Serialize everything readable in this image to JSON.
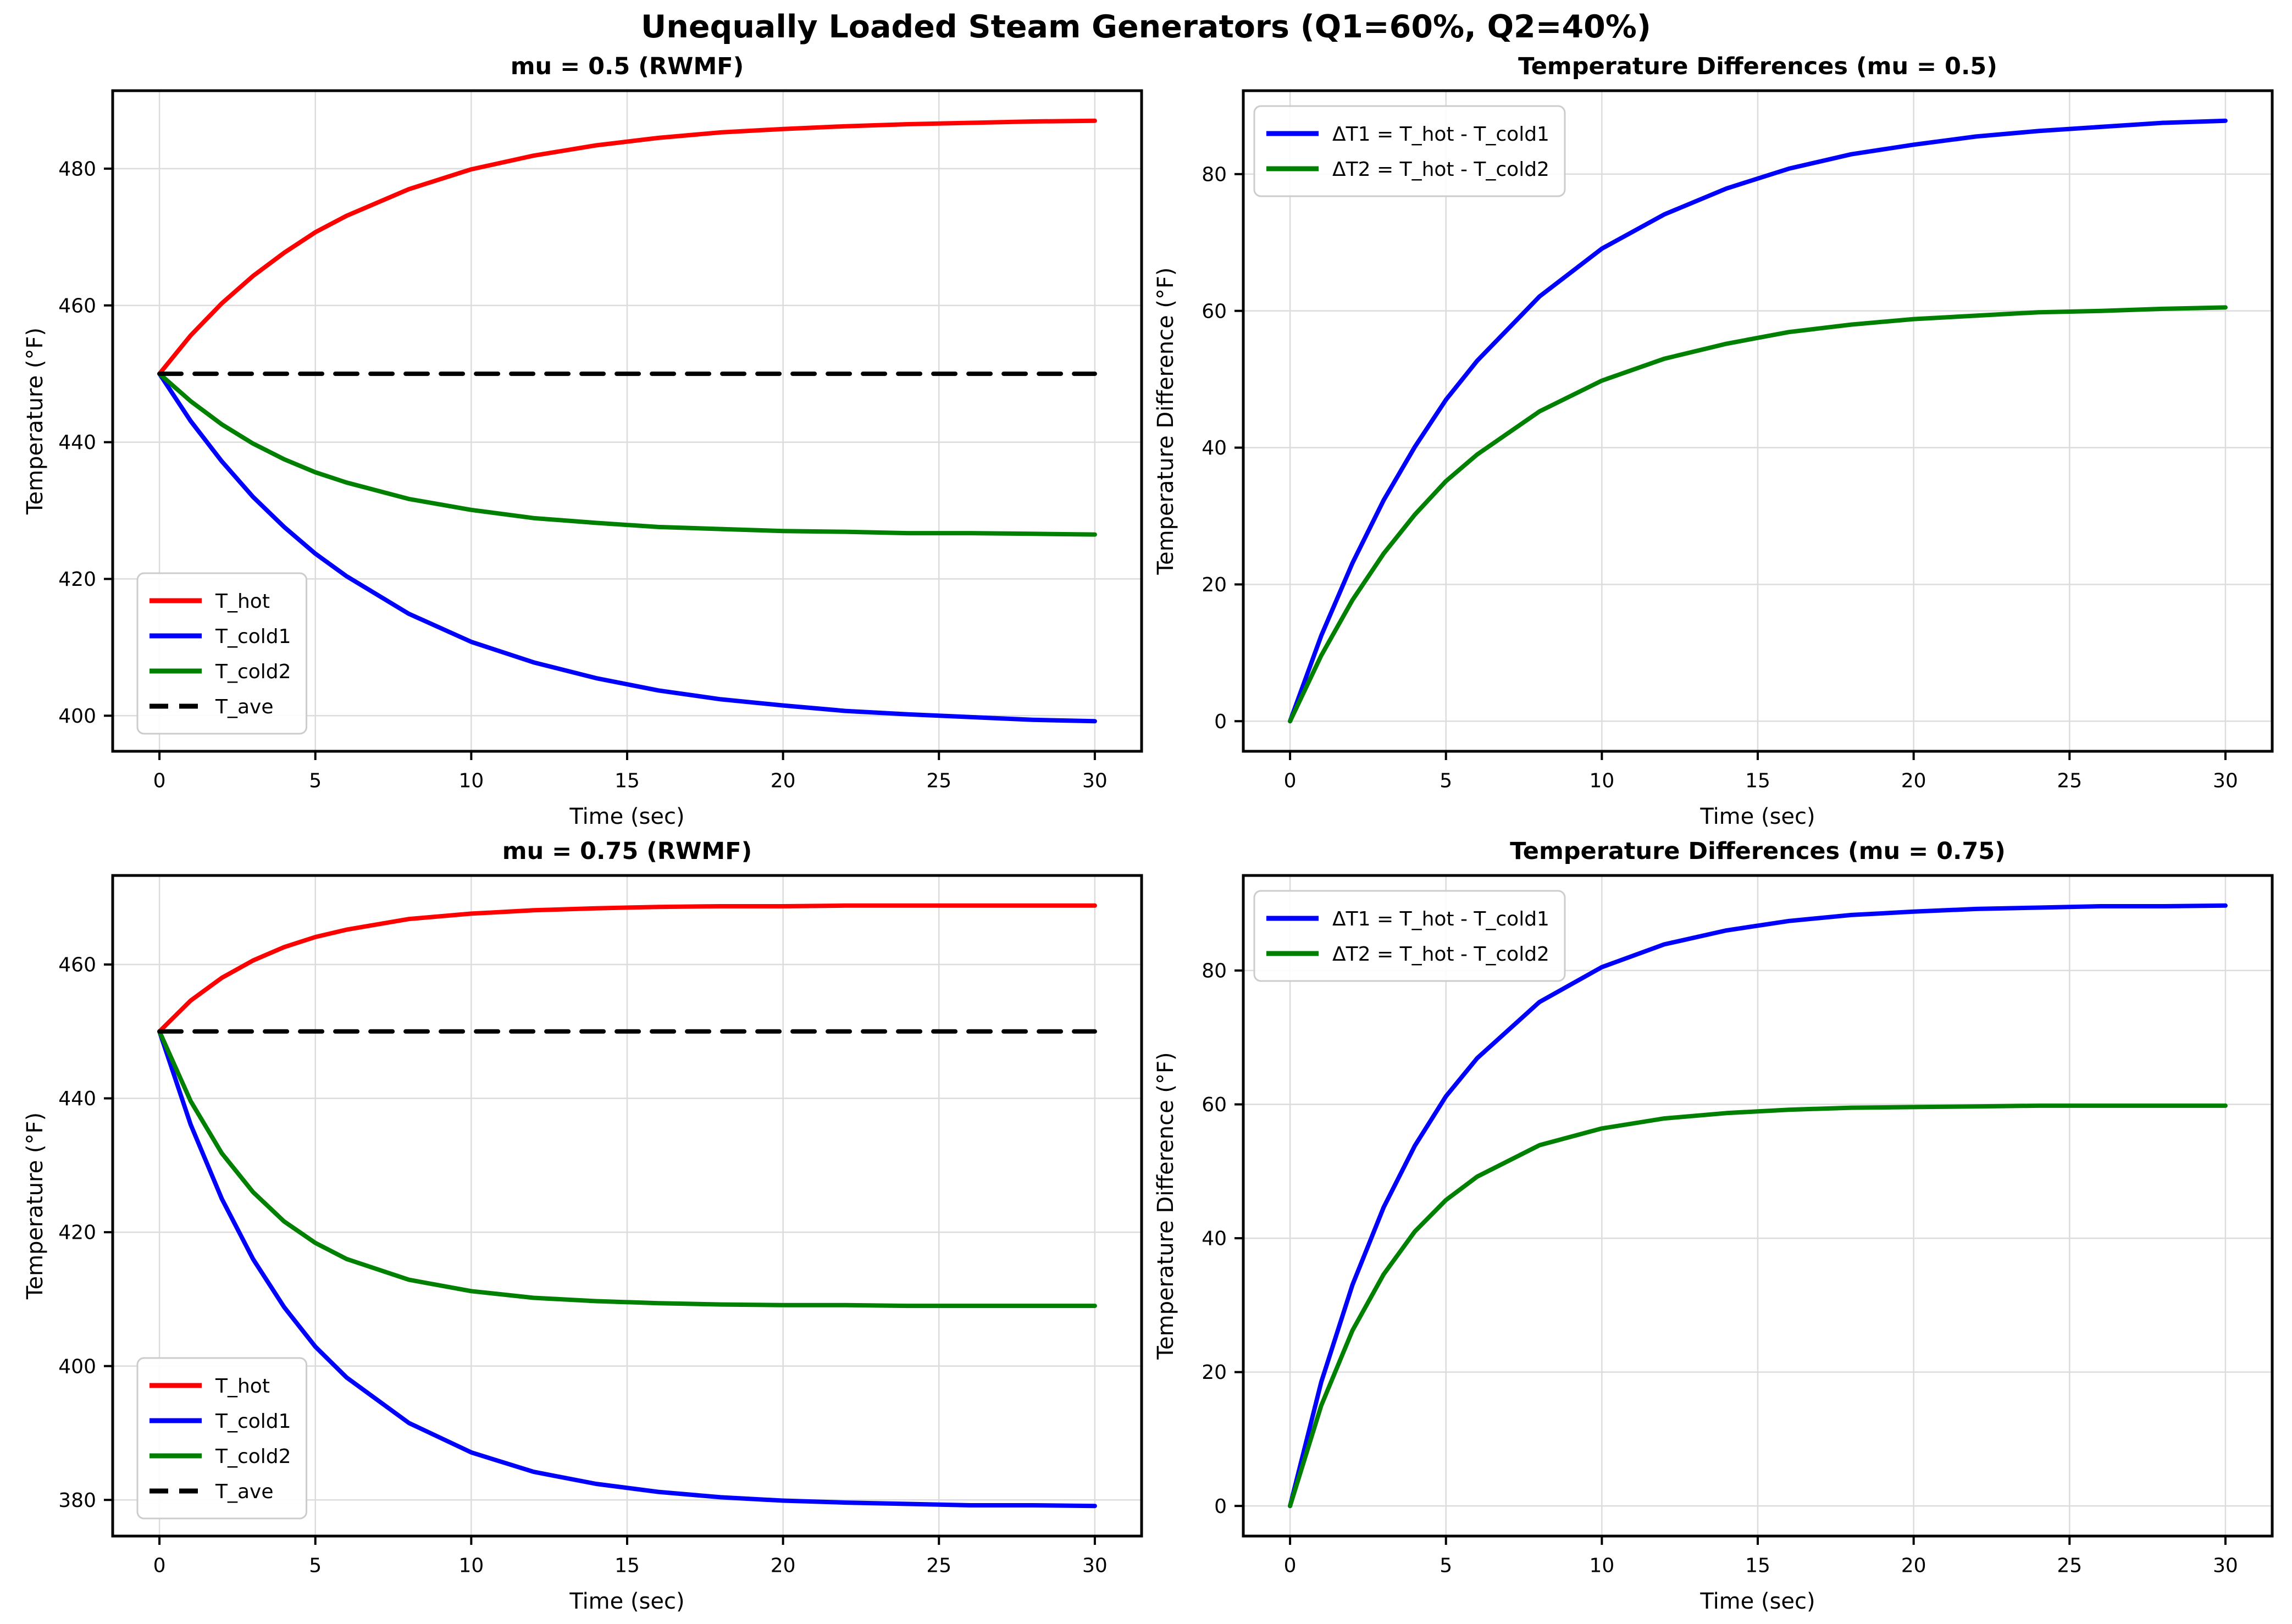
{
  "figure": {
    "suptitle": "Unequally Loaded Steam Generators (Q1=60%, Q2=40%)",
    "background": "#ffffff",
    "colors": {
      "t_hot": "#ff0000",
      "t_cold1": "#0000ff",
      "t_cold2": "#008000",
      "t_ave": "#000000",
      "grid": "#dcdcdc",
      "spine": "#000000",
      "tick_label": "#000000",
      "legend_border": "#cccccc",
      "legend_background": "#ffffff"
    }
  },
  "chart_data": [
    {
      "id": "top-left",
      "type": "line",
      "title": "mu = 0.5 (RWMF)",
      "xlabel": "Time (sec)",
      "ylabel": "Temperature (°F)",
      "xlim": [
        -1.5,
        31.5
      ],
      "ylim": [
        394.8,
        491.4
      ],
      "xticks": [
        0,
        5,
        10,
        15,
        20,
        25,
        30
      ],
      "yticks": [
        400,
        420,
        440,
        460,
        480
      ],
      "grid": true,
      "legend_loc": "lower left",
      "x": [
        0,
        1,
        2,
        3,
        4,
        5,
        6,
        8,
        10,
        12,
        14,
        16,
        18,
        20,
        22,
        24,
        26,
        28,
        30
      ],
      "series": [
        {
          "name": "T_hot",
          "color": "#ff0000",
          "dash": false,
          "values": [
            450.0,
            455.6,
            460.3,
            464.3,
            467.7,
            470.7,
            473.1,
            477.0,
            479.9,
            481.9,
            483.4,
            484.5,
            485.3,
            485.8,
            486.2,
            486.5,
            486.7,
            486.9,
            487.0
          ]
        },
        {
          "name": "T_cold1",
          "color": "#0000ff",
          "dash": false,
          "values": [
            450.0,
            443.1,
            437.2,
            432.0,
            427.6,
            423.7,
            420.4,
            414.9,
            410.8,
            407.8,
            405.5,
            403.7,
            402.4,
            401.5,
            400.7,
            400.2,
            399.8,
            399.4,
            399.2
          ]
        },
        {
          "name": "T_cold2",
          "color": "#008000",
          "dash": false,
          "values": [
            450.0,
            446.0,
            442.6,
            439.8,
            437.5,
            435.6,
            434.1,
            431.7,
            430.1,
            428.9,
            428.2,
            427.6,
            427.3,
            427.0,
            426.9,
            426.7,
            426.7,
            426.6,
            426.5
          ]
        },
        {
          "name": "T_ave",
          "color": "#000000",
          "dash": true,
          "values": [
            450,
            450,
            450,
            450,
            450,
            450,
            450,
            450,
            450,
            450,
            450,
            450,
            450,
            450,
            450,
            450,
            450,
            450,
            450
          ]
        }
      ]
    },
    {
      "id": "top-right",
      "type": "line",
      "title": "Temperature Differences (mu = 0.5)",
      "xlabel": "Time (sec)",
      "ylabel": "Temperature Difference (°F)",
      "xlim": [
        -1.5,
        31.5
      ],
      "ylim": [
        -4.4,
        92.2
      ],
      "xticks": [
        0,
        5,
        10,
        15,
        20,
        25,
        30
      ],
      "yticks": [
        0,
        20,
        40,
        60,
        80
      ],
      "grid": true,
      "legend_loc": "upper left",
      "x": [
        0,
        1,
        2,
        3,
        4,
        5,
        6,
        8,
        10,
        12,
        14,
        16,
        18,
        20,
        22,
        24,
        26,
        28,
        30
      ],
      "series": [
        {
          "name": "ΔT1 = T_hot - T_cold1",
          "color": "#0000ff",
          "dash": false,
          "values": [
            0,
            12.5,
            23.1,
            32.3,
            40.1,
            47.0,
            52.7,
            62.1,
            69.1,
            74.1,
            77.9,
            80.8,
            82.9,
            84.3,
            85.5,
            86.3,
            86.9,
            87.5,
            87.8
          ]
        },
        {
          "name": "ΔT2 = T_hot - T_cold2",
          "color": "#008000",
          "dash": false,
          "values": [
            0,
            9.6,
            17.7,
            24.5,
            30.2,
            35.1,
            39.0,
            45.3,
            49.8,
            53.0,
            55.2,
            56.9,
            58.0,
            58.8,
            59.3,
            59.8,
            60.0,
            60.3,
            60.5
          ]
        }
      ]
    },
    {
      "id": "bottom-left",
      "type": "line",
      "title": "mu = 0.75 (RWMF)",
      "xlabel": "Time (sec)",
      "ylabel": "Temperature (°F)",
      "xlim": [
        -1.5,
        31.5
      ],
      "ylim": [
        374.6,
        473.3
      ],
      "xticks": [
        0,
        5,
        10,
        15,
        20,
        25,
        30
      ],
      "yticks": [
        380,
        400,
        420,
        440,
        460
      ],
      "grid": true,
      "legend_loc": "lower left",
      "x": [
        0,
        1,
        2,
        3,
        4,
        5,
        6,
        8,
        10,
        12,
        14,
        16,
        18,
        20,
        22,
        24,
        26,
        28,
        30
      ],
      "series": [
        {
          "name": "T_hot",
          "color": "#ff0000",
          "dash": false,
          "values": [
            450.0,
            454.6,
            458.0,
            460.6,
            462.6,
            464.1,
            465.2,
            466.8,
            467.6,
            468.1,
            468.4,
            468.6,
            468.7,
            468.7,
            468.8,
            468.8,
            468.8,
            468.8,
            468.8
          ]
        },
        {
          "name": "T_cold1",
          "color": "#0000ff",
          "dash": false,
          "values": [
            450.0,
            436.1,
            425.0,
            416.0,
            408.8,
            402.9,
            398.3,
            391.5,
            387.1,
            384.2,
            382.4,
            381.2,
            380.4,
            379.9,
            379.6,
            379.4,
            379.2,
            379.2,
            379.1
          ]
        },
        {
          "name": "T_cold2",
          "color": "#008000",
          "dash": false,
          "values": [
            450.0,
            439.6,
            431.8,
            426.0,
            421.6,
            418.4,
            416.0,
            412.9,
            411.2,
            410.2,
            409.7,
            409.4,
            409.2,
            409.1,
            409.1,
            409.0,
            409.0,
            409.0,
            409.0
          ]
        },
        {
          "name": "T_ave",
          "color": "#000000",
          "dash": true,
          "values": [
            450,
            450,
            450,
            450,
            450,
            450,
            450,
            450,
            450,
            450,
            450,
            450,
            450,
            450,
            450,
            450,
            450,
            450,
            450
          ]
        }
      ]
    },
    {
      "id": "bottom-right",
      "type": "line",
      "title": "Temperature Differences (mu = 0.75)",
      "xlabel": "Time (sec)",
      "ylabel": "Temperature Difference (°F)",
      "xlim": [
        -1.5,
        31.5
      ],
      "ylim": [
        -4.5,
        94.2
      ],
      "xticks": [
        0,
        5,
        10,
        15,
        20,
        25,
        30
      ],
      "yticks": [
        0,
        20,
        40,
        60,
        80
      ],
      "grid": true,
      "legend_loc": "upper left",
      "x": [
        0,
        1,
        2,
        3,
        4,
        5,
        6,
        8,
        10,
        12,
        14,
        16,
        18,
        20,
        22,
        24,
        26,
        28,
        30
      ],
      "series": [
        {
          "name": "ΔT1 = T_hot - T_cold1",
          "color": "#0000ff",
          "dash": false,
          "values": [
            0,
            18.5,
            33.0,
            44.6,
            53.8,
            61.2,
            66.9,
            75.3,
            80.5,
            83.9,
            86.0,
            87.4,
            88.3,
            88.8,
            89.2,
            89.4,
            89.6,
            89.6,
            89.7
          ]
        },
        {
          "name": "ΔT2 = T_hot - T_cold2",
          "color": "#008000",
          "dash": false,
          "values": [
            0,
            15.0,
            26.2,
            34.6,
            41.0,
            45.7,
            49.2,
            53.9,
            56.4,
            57.9,
            58.7,
            59.2,
            59.5,
            59.6,
            59.7,
            59.8,
            59.8,
            59.8,
            59.8
          ]
        }
      ]
    }
  ]
}
